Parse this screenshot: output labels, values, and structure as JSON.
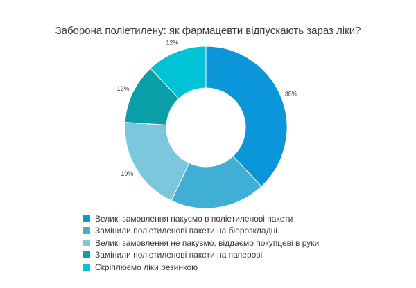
{
  "chart_data": {
    "type": "pie",
    "title": "Заборона поліетилену: як фармацевти відпускають зараз ліки?",
    "legend_position": "bottom",
    "donut": true,
    "slices": [
      {
        "label": "Великі замовлення пакуємо в поліетиленові пакети",
        "value": 38,
        "value_label": "38%",
        "color": "#0a96d8"
      },
      {
        "label": "Замінили поліетиленові пакети на біорозкладні",
        "value": 19,
        "value_label": "19%",
        "color": "#40afd5"
      },
      {
        "label": "Великі замовлення не пакуємо, віддаємо покупцеві в руки",
        "value": 19,
        "value_label": "19%",
        "color": "#7bc8dc"
      },
      {
        "label": "Замінили поліетиленові пакети на паперові",
        "value": 12,
        "value_label": "12%",
        "color": "#0a9ea8"
      },
      {
        "label": "Скріплюємо ліки резинкою",
        "value": 12,
        "value_label": "12%",
        "color": "#00c3d7"
      }
    ]
  }
}
